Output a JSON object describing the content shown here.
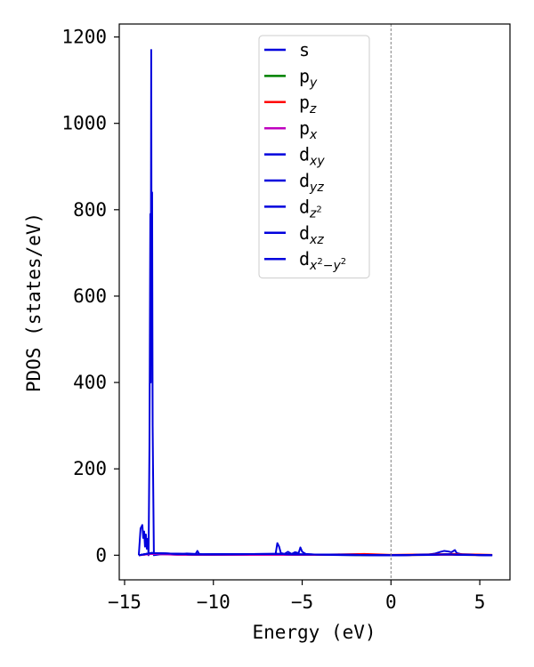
{
  "chart_data": {
    "type": "line",
    "xlabel": "Energy (eV)",
    "ylabel": "PDOS (states/eV)",
    "xlim": [
      -15.3,
      6.7
    ],
    "ylim": [
      -57,
      1230
    ],
    "xticks": [
      -15,
      -10,
      -5,
      0,
      5
    ],
    "xtick_labels": [
      "−15",
      "−10",
      "−5",
      "0",
      "5"
    ],
    "yticks": [
      0,
      200,
      400,
      600,
      800,
      1000,
      1200
    ],
    "ytick_labels": [
      "0",
      "200",
      "400",
      "600",
      "800",
      "1000",
      "1200"
    ],
    "reference_line": {
      "x": 0,
      "style": "dashed",
      "color": "#808080"
    },
    "legend_position": "top-center",
    "grid": false,
    "series": [
      {
        "name": "s",
        "color": "#0000dd",
        "points": [
          [
            -14.2,
            0
          ],
          [
            -14.1,
            62
          ],
          [
            -14.0,
            70
          ],
          [
            -13.95,
            40
          ],
          [
            -13.9,
            55
          ],
          [
            -13.85,
            20
          ],
          [
            -13.8,
            48
          ],
          [
            -13.75,
            15
          ],
          [
            -13.7,
            38
          ],
          [
            -13.65,
            0
          ],
          [
            -13.6,
            250
          ],
          [
            -13.55,
            790
          ],
          [
            -13.53,
            400
          ],
          [
            -13.5,
            1170
          ],
          [
            -13.48,
            600
          ],
          [
            -13.45,
            840
          ],
          [
            -13.42,
            300
          ],
          [
            -13.4,
            210
          ],
          [
            -13.35,
            0
          ],
          [
            -13.0,
            2
          ],
          [
            -12.5,
            3
          ],
          [
            -12.0,
            2
          ],
          [
            -11.5,
            4
          ],
          [
            -11.0,
            3
          ],
          [
            -10.9,
            10
          ],
          [
            -10.8,
            3
          ],
          [
            -10.5,
            1
          ],
          [
            -8.0,
            1
          ],
          [
            -6.5,
            2
          ],
          [
            -6.4,
            28
          ],
          [
            -6.3,
            20
          ],
          [
            -6.2,
            5
          ],
          [
            -6.0,
            3
          ],
          [
            -5.8,
            8
          ],
          [
            -5.6,
            3
          ],
          [
            -5.4,
            7
          ],
          [
            -5.2,
            5
          ],
          [
            -5.1,
            18
          ],
          [
            -5.0,
            8
          ],
          [
            -4.8,
            3
          ],
          [
            -4.0,
            1
          ],
          [
            -2.0,
            0
          ],
          [
            0.0,
            0
          ],
          [
            2.0,
            1
          ],
          [
            2.5,
            4
          ],
          [
            2.8,
            8
          ],
          [
            3.0,
            10
          ],
          [
            3.2,
            9
          ],
          [
            3.4,
            7
          ],
          [
            3.6,
            12
          ],
          [
            3.7,
            5
          ],
          [
            4.0,
            2
          ],
          [
            5.0,
            1
          ],
          [
            5.7,
            0
          ]
        ]
      },
      {
        "name": "p_y",
        "color": "#008000",
        "points": [
          [
            -14.2,
            0
          ],
          [
            -13.5,
            4
          ],
          [
            -12.0,
            1
          ],
          [
            -6.4,
            2
          ],
          [
            -5.0,
            1
          ],
          [
            0.0,
            0
          ],
          [
            3.0,
            1
          ],
          [
            5.7,
            0
          ]
        ]
      },
      {
        "name": "p_z",
        "color": "#ff0000",
        "points": [
          [
            -14.2,
            0
          ],
          [
            -13.5,
            3
          ],
          [
            -11.0,
            1
          ],
          [
            -5.0,
            1
          ],
          [
            -3.0,
            2
          ],
          [
            -1.5,
            3
          ],
          [
            0.0,
            1
          ],
          [
            2.0,
            2
          ],
          [
            3.5,
            3
          ],
          [
            4.5,
            2
          ],
          [
            5.7,
            1
          ]
        ]
      },
      {
        "name": "p_x",
        "color": "#bf00bf",
        "points": [
          [
            -14.2,
            0
          ],
          [
            -13.5,
            3
          ],
          [
            -12.0,
            1
          ],
          [
            -6.0,
            1
          ],
          [
            -2.0,
            1
          ],
          [
            0.0,
            0
          ],
          [
            3.0,
            1
          ],
          [
            5.7,
            0
          ]
        ]
      },
      {
        "name": "d_xy",
        "color": "#0000dd",
        "points": [
          [
            -14.2,
            0
          ],
          [
            -13.5,
            5
          ],
          [
            -10.9,
            2
          ],
          [
            -6.4,
            3
          ],
          [
            -5.1,
            2
          ],
          [
            0.0,
            0
          ],
          [
            3.2,
            2
          ],
          [
            5.7,
            0
          ]
        ]
      },
      {
        "name": "d_yz",
        "color": "#0000dd",
        "points": [
          [
            -14.2,
            0
          ],
          [
            -13.5,
            5
          ],
          [
            -10.9,
            2
          ],
          [
            -6.4,
            3
          ],
          [
            -5.1,
            2
          ],
          [
            0.0,
            0
          ],
          [
            3.2,
            2
          ],
          [
            5.7,
            0
          ]
        ]
      },
      {
        "name": "d_z²",
        "color": "#0000dd",
        "points": [
          [
            -14.2,
            0
          ],
          [
            -13.5,
            5
          ],
          [
            -10.9,
            2
          ],
          [
            -6.4,
            3
          ],
          [
            -5.1,
            2
          ],
          [
            0.0,
            0
          ],
          [
            3.2,
            2
          ],
          [
            5.7,
            0
          ]
        ]
      },
      {
        "name": "d_xz",
        "color": "#0000dd",
        "points": [
          [
            -14.2,
            0
          ],
          [
            -13.5,
            5
          ],
          [
            -10.9,
            2
          ],
          [
            -6.4,
            3
          ],
          [
            -5.1,
            2
          ],
          [
            0.0,
            0
          ],
          [
            3.2,
            2
          ],
          [
            5.7,
            0
          ]
        ]
      },
      {
        "name": "d_x²−y²",
        "color": "#0000dd",
        "points": [
          [
            -14.2,
            0
          ],
          [
            -13.5,
            5
          ],
          [
            -10.9,
            2
          ],
          [
            -6.4,
            3
          ],
          [
            -5.1,
            2
          ],
          [
            0.0,
            0
          ],
          [
            3.2,
            2
          ],
          [
            5.7,
            0
          ]
        ]
      }
    ],
    "legend": [
      {
        "base": "s",
        "sub": "",
        "sup": "",
        "tail": "",
        "color": "#0000dd"
      },
      {
        "base": "p",
        "sub": "y",
        "sup": "",
        "tail": "",
        "color": "#008000"
      },
      {
        "base": "p",
        "sub": "z",
        "sup": "",
        "tail": "",
        "color": "#ff0000"
      },
      {
        "base": "p",
        "sub": "x",
        "sup": "",
        "tail": "",
        "color": "#bf00bf"
      },
      {
        "base": "d",
        "sub": "xy",
        "sup": "",
        "tail": "",
        "color": "#0000dd"
      },
      {
        "base": "d",
        "sub": "yz",
        "sup": "",
        "tail": "",
        "color": "#0000dd"
      },
      {
        "base": "d",
        "sub": "z",
        "sup": "2",
        "tail": "",
        "color": "#0000dd"
      },
      {
        "base": "d",
        "sub": "xz",
        "sup": "",
        "tail": "",
        "color": "#0000dd"
      },
      {
        "base": "d",
        "sub": "x",
        "sup": "2",
        "tail": "−y",
        "tail_sup": "2",
        "color": "#0000dd"
      }
    ]
  }
}
